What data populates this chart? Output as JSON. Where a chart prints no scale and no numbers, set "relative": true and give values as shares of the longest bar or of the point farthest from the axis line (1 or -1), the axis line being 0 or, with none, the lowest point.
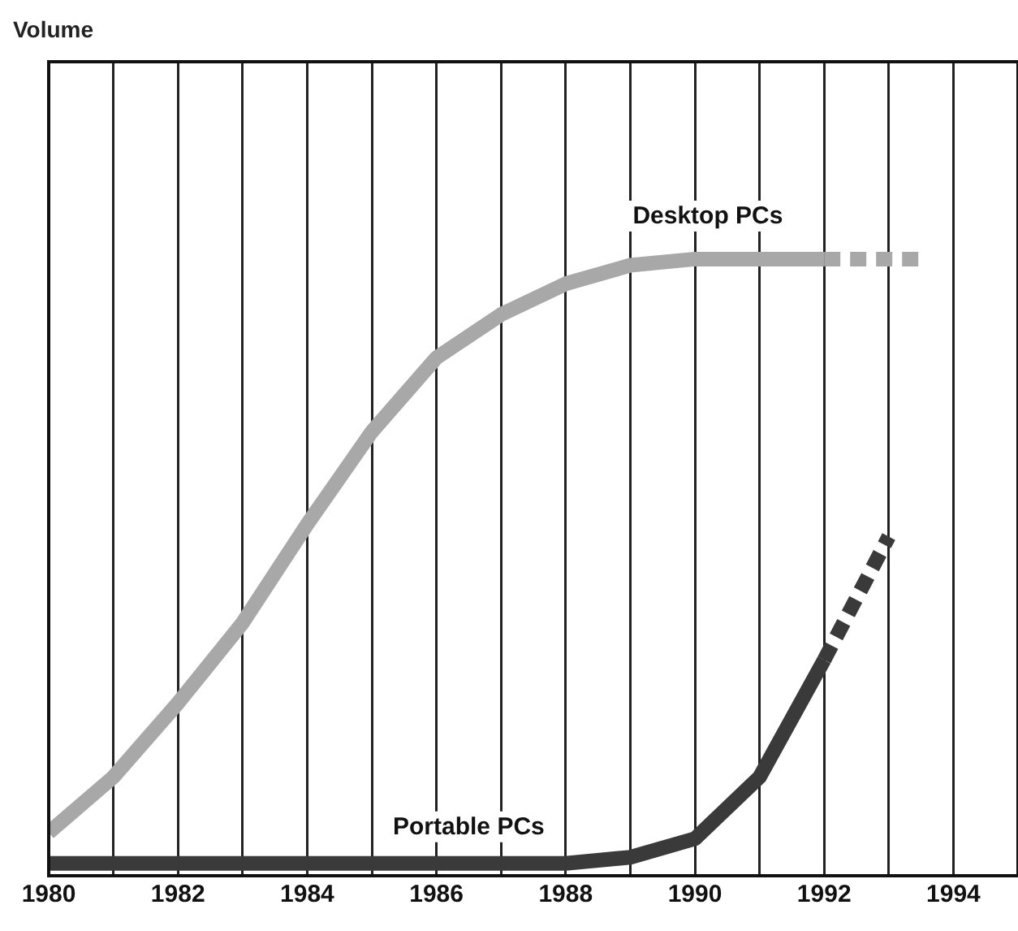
{
  "chart_data": {
    "type": "line",
    "annotations": [
      "Volume"
    ],
    "relative": true,
    "x": [
      1980,
      1981,
      1982,
      1983,
      1984,
      1985,
      1986,
      1987,
      1988,
      1989,
      1990,
      1991,
      1992
    ],
    "series": [
      {
        "name": "Desktop PCs",
        "color": "#a8a8a8",
        "values": [
          0.07,
          0.16,
          0.28,
          0.41,
          0.57,
          0.72,
          0.84,
          0.91,
          0.96,
          0.99,
          1,
          1,
          1
        ]
      },
      {
        "color": "#a8a8a8",
        "line_style": "dashed",
        "x": [
          1992,
          1993.5
        ],
        "values": [
          1,
          1
        ]
      },
      {
        "name": "Portable PCs",
        "color": "#3a3a3a",
        "values": [
          0.02,
          0.02,
          0.02,
          0.02,
          0.02,
          0.02,
          0.02,
          0.02,
          0.02,
          0.03,
          0.06,
          0.16,
          0.35
        ]
      },
      {
        "color": "#3a3a3a",
        "line_style": "dashed",
        "x": [
          1992,
          1993
        ],
        "values": [
          0.35,
          0.55
        ]
      }
    ],
    "xlim": [
      1980,
      1995
    ],
    "xticks": [
      1980,
      {
        "value": 1981,
        "label": null
      },
      1982,
      {
        "value": 1983,
        "label": null
      },
      1984,
      {
        "value": 1985,
        "label": null
      },
      1986,
      {
        "value": 1987,
        "label": null
      },
      1988,
      {
        "value": 1989,
        "label": null
      },
      1990,
      {
        "value": 1991,
        "label": null
      },
      1992,
      {
        "value": 1993,
        "label": null
      },
      1994
    ],
    "grid": "x",
    "legend": false,
    "marker": "none",
    "line_style": "solid"
  }
}
